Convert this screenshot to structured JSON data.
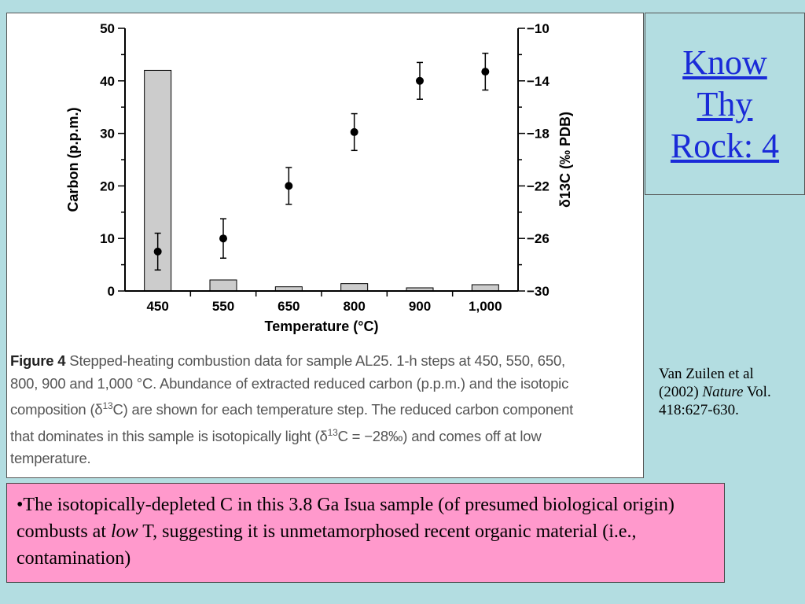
{
  "slide": {
    "title_lines": [
      "Know",
      "Thy",
      "Rock: 4"
    ],
    "citation": {
      "authors": "Van Zuilen et al (2002)",
      "journal": "Nature",
      "volume": "Vol. 418:627-630."
    },
    "note": {
      "bullet": "•",
      "text_before": "The isotopically-depleted C in this 3.8 Ga Isua sample (of presumed biological origin) combusts at ",
      "emphasis": "low",
      "text_after": " T, suggesting it is unmetamorphosed recent organic material (i.e., contamination)"
    },
    "colors": {
      "background": "#b3dde1",
      "note_box": "#ff99cc",
      "title_link": "#1a2bd8",
      "bar_fill": "#cccccc"
    }
  },
  "caption": {
    "label": "Figure 4",
    "line1": " Stepped-heating combustion data for sample AL25. 1-h steps at 450, 550, 650,",
    "line2": "800, 900 and 1,000 °C. Abundance of extracted reduced carbon (p.p.m.) and the isotopic",
    "line3_pre": "composition (δ",
    "line3_sup": "13",
    "line3_post": "C) are shown for each temperature step. The reduced carbon component",
    "line4_pre": "that dominates in this sample is isotopically light (δ",
    "line4_sup": "13",
    "line4_post": "C = −28‰) and comes off at low",
    "line5": "temperature."
  },
  "chart_data": {
    "type": "bar",
    "categories": [
      "450",
      "550",
      "650",
      "800",
      "900",
      "1,000"
    ],
    "xlabel": "Temperature (°C)",
    "ylabel": "Carbon (p.p.m.)",
    "ylim": [
      0,
      50
    ],
    "yticks": [
      "0",
      "10",
      "20",
      "30",
      "40",
      "50"
    ],
    "y2label": "δ13C (‰ PDB)",
    "y2lim": [
      -30,
      -10
    ],
    "y2ticks": [
      "−30",
      "−26",
      "−22",
      "−18",
      "−14",
      "−10"
    ],
    "series": [
      {
        "kind": "bar",
        "axis": "left",
        "values": [
          42,
          2.1,
          0.8,
          1.4,
          0.6,
          1.2
        ]
      },
      {
        "kind": "scatter",
        "axis": "right",
        "values": [
          -27.0,
          -26.0,
          -22.0,
          -17.9,
          -14.0,
          -13.3
        ],
        "error": [
          1.4,
          1.5,
          1.4,
          1.4,
          1.4,
          1.4
        ]
      }
    ],
    "grid": false,
    "legend": "none"
  }
}
